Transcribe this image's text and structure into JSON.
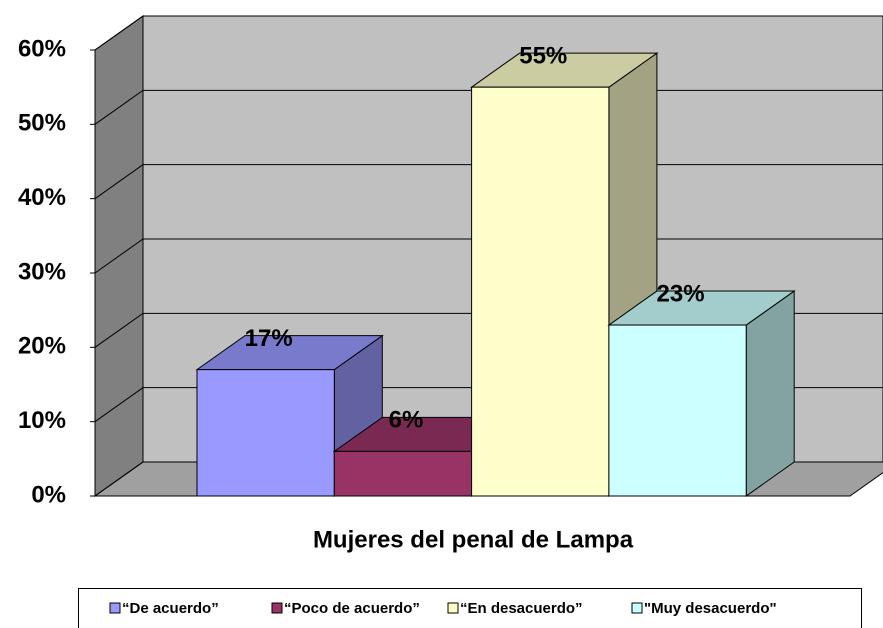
{
  "chart_data": {
    "type": "bar3d",
    "x_label": "Mujeres del penal de Lampa",
    "series": [
      {
        "name": "“De acuerdo”",
        "color": "#9999ff",
        "values": [
          17
        ],
        "value_labels": [
          "17%"
        ]
      },
      {
        "name": "“Poco de acuerdo”",
        "color": "#993366",
        "values": [
          6
        ],
        "value_labels": [
          "6%"
        ]
      },
      {
        "name": "“En desacuerdo”",
        "color": "#ffffcc",
        "values": [
          55
        ],
        "value_labels": [
          "55%"
        ]
      },
      {
        "name": "\"Muy desacuerdo\"",
        "color": "#ccffff",
        "values": [
          23
        ],
        "value_labels": [
          "23%"
        ]
      }
    ],
    "ylim": [
      0,
      60
    ],
    "yticks": [
      {
        "value": 0,
        "label": "0%"
      },
      {
        "value": 10,
        "label": "10%"
      },
      {
        "value": 20,
        "label": "20%"
      },
      {
        "value": 30,
        "label": "30%"
      },
      {
        "value": 40,
        "label": "40%"
      },
      {
        "value": 50,
        "label": "50%"
      },
      {
        "value": 60,
        "label": "60%"
      }
    ],
    "grid": true,
    "legend": "bottom"
  }
}
